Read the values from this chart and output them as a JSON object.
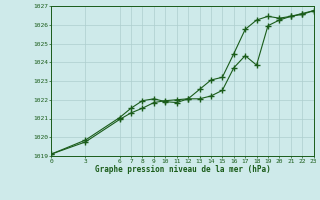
{
  "title": "Graphe pression niveau de la mer (hPa)",
  "bg_color": "#ceeaea",
  "grid_color": "#aecece",
  "line_color": "#1a5c1a",
  "marker_color": "#1a5c1a",
  "xlim": [
    0,
    23
  ],
  "ylim": [
    1019,
    1027
  ],
  "xticks": [
    0,
    3,
    6,
    7,
    8,
    9,
    10,
    11,
    12,
    13,
    14,
    15,
    16,
    17,
    18,
    19,
    20,
    21,
    22,
    23
  ],
  "yticks": [
    1019,
    1020,
    1021,
    1022,
    1023,
    1024,
    1025,
    1026,
    1027
  ],
  "line1_x": [
    0,
    3,
    6,
    7,
    8,
    9,
    10,
    11,
    12,
    13,
    14,
    15,
    16,
    17,
    18,
    19,
    20,
    21,
    22,
    23
  ],
  "line1_y": [
    1019.1,
    1019.85,
    1021.05,
    1021.55,
    1021.95,
    1022.05,
    1021.9,
    1021.85,
    1022.05,
    1022.05,
    1022.2,
    1022.5,
    1023.7,
    1024.35,
    1023.85,
    1025.95,
    1026.25,
    1026.45,
    1026.55,
    1026.75
  ],
  "line2_x": [
    0,
    3,
    6,
    7,
    8,
    9,
    10,
    11,
    12,
    13,
    14,
    15,
    16,
    17,
    18,
    19,
    20,
    21,
    22,
    23
  ],
  "line2_y": [
    1019.1,
    1019.75,
    1020.95,
    1021.3,
    1021.55,
    1021.85,
    1021.95,
    1022.0,
    1022.05,
    1022.55,
    1023.05,
    1023.2,
    1024.45,
    1025.75,
    1026.25,
    1026.45,
    1026.35,
    1026.45,
    1026.6,
    1026.75
  ]
}
